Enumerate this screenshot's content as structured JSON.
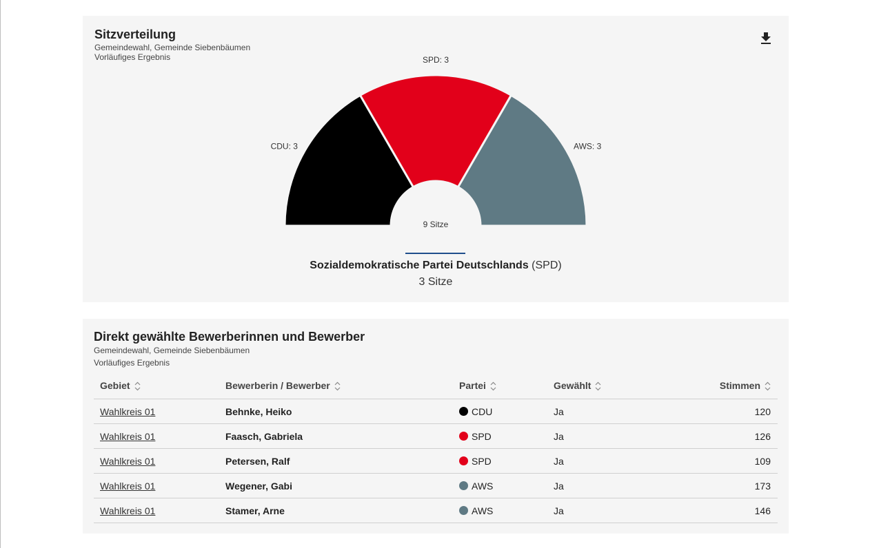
{
  "seats_card": {
    "title": "Sitzverteilung",
    "subtitle1": "Gemeindewahl, Gemeinde Siebenbäumen",
    "subtitle2": "Vorläufiges Ergebnis",
    "download_icon": "download-icon",
    "selected": {
      "party_name": "Sozialdemokratische Partei Deutschlands",
      "party_abbr": "(SPD)",
      "seats_text": "3 Sitze"
    }
  },
  "chart_data": {
    "type": "pie",
    "variant": "parliament-semicircle",
    "center_label": "9 Sitze",
    "total_seats": 9,
    "slices": [
      {
        "party": "CDU",
        "seats": 3,
        "label": "CDU: 3",
        "color": "#000000"
      },
      {
        "party": "SPD",
        "seats": 3,
        "label": "SPD: 3",
        "color": "#e2001a"
      },
      {
        "party": "AWS",
        "seats": 3,
        "label": "AWS: 3",
        "color": "#5f7a84"
      }
    ]
  },
  "table_card": {
    "title": "Direkt gewählte Bewerberinnen und Bewerber",
    "subtitle1": "Gemeindewahl, Gemeinde Siebenbäumen",
    "subtitle2": "Vorläufiges Ergebnis",
    "headers": [
      "Gebiet",
      "Bewerberin / Bewerber",
      "Partei",
      "Gewählt",
      "Stimmen"
    ],
    "rows": [
      {
        "gebiet": "Wahlkreis 01",
        "name": "Behnke, Heiko",
        "partei": "CDU",
        "color": "#000000",
        "gewaehlt": "Ja",
        "stimmen": "120"
      },
      {
        "gebiet": "Wahlkreis 01",
        "name": "Faasch, Gabriela",
        "partei": "SPD",
        "color": "#e2001a",
        "gewaehlt": "Ja",
        "stimmen": "126"
      },
      {
        "gebiet": "Wahlkreis 01",
        "name": "Petersen, Ralf",
        "partei": "SPD",
        "color": "#e2001a",
        "gewaehlt": "Ja",
        "stimmen": "109"
      },
      {
        "gebiet": "Wahlkreis 01",
        "name": "Wegener, Gabi",
        "partei": "AWS",
        "color": "#5f7a84",
        "gewaehlt": "Ja",
        "stimmen": "173"
      },
      {
        "gebiet": "Wahlkreis 01",
        "name": "Stamer, Arne",
        "partei": "AWS",
        "color": "#5f7a84",
        "gewaehlt": "Ja",
        "stimmen": "146"
      }
    ]
  }
}
